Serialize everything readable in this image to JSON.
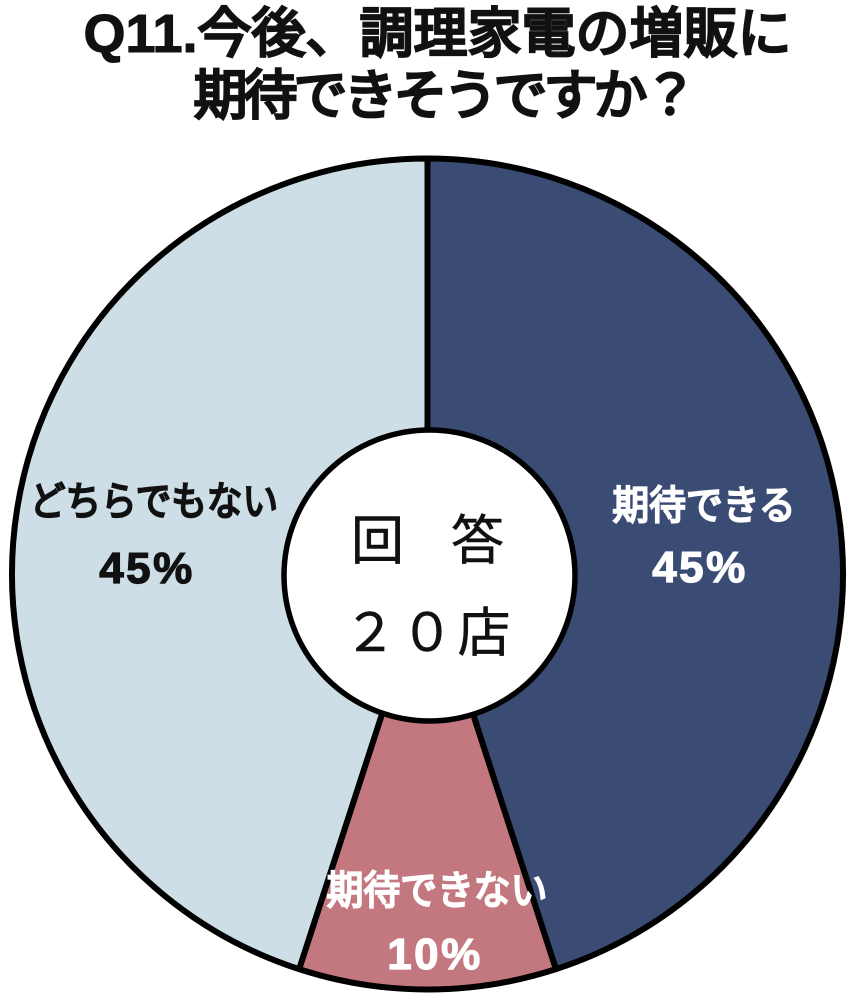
{
  "title": {
    "line1": "Q11.今後、調理家電の増販に",
    "line2": "期待できそうですか？"
  },
  "center": {
    "line1": "回　答",
    "line2": "２０店"
  },
  "chart_data": {
    "type": "pie",
    "donut": true,
    "title": "Q11.今後、調理家電の増販に期待できそうですか？",
    "center_label": "回答 ２０店",
    "unit": "%",
    "start_angle_deg": 0,
    "direction": "clockwise",
    "segments": [
      {
        "label": "期待できる",
        "value": 45,
        "value_label": "45%",
        "color": "#3A4B74",
        "text_color": "#FFFFFF"
      },
      {
        "label": "期待できない",
        "value": 10,
        "value_label": "10%",
        "color": "#C3777F",
        "text_color": "#FFFFFF"
      },
      {
        "label": "どちらでもない",
        "value": 45,
        "value_label": "45%",
        "color": "#CDDEE7",
        "text_color": "#111111"
      }
    ],
    "outline_color": "#000000",
    "background_color": "#FFFFFF"
  }
}
